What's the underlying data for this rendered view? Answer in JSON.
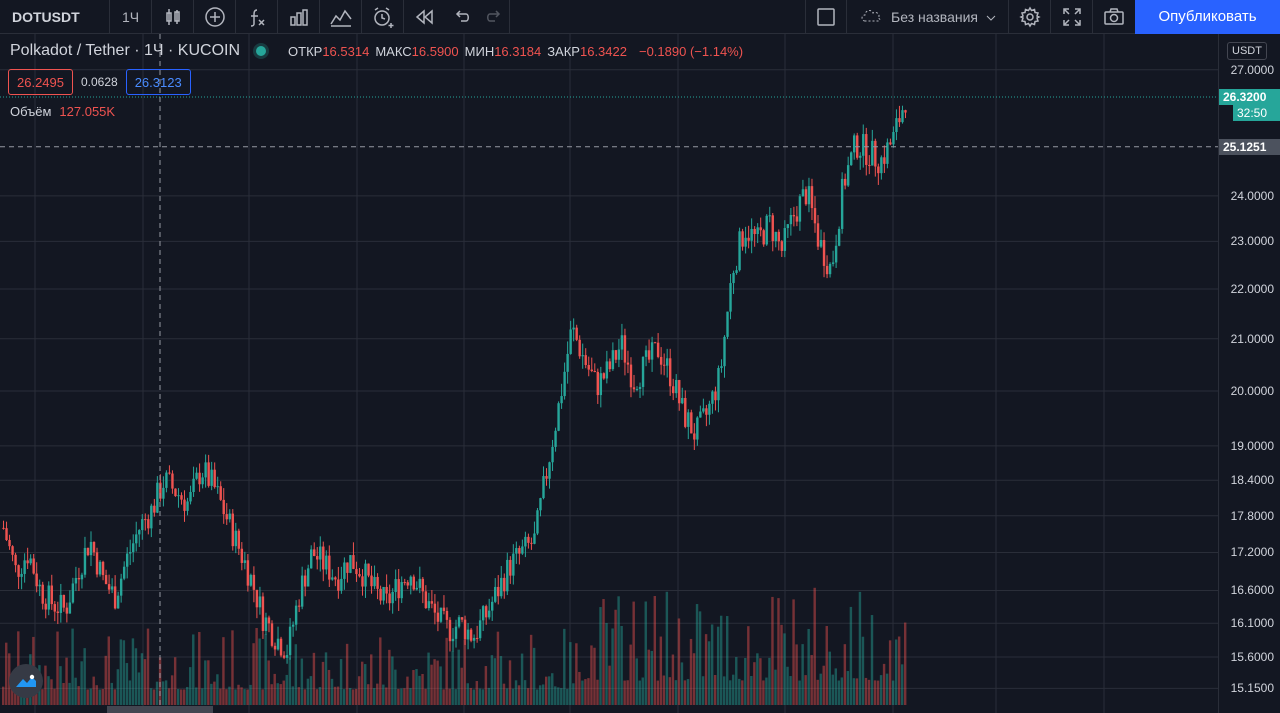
{
  "toolbar": {
    "symbol": "DOTUSDT",
    "interval": "1Ч",
    "icons": [
      "candles-icon",
      "add-indicator-icon",
      "fx-icon",
      "bar-compare-icon",
      "templates-icon",
      "alert-icon",
      "replay-icon",
      "undo-icon",
      "redo-icon",
      "fullscreen-square-icon",
      "cloud-icon",
      "chevron-down-icon",
      "settings-icon",
      "expand-icon",
      "camera-icon"
    ],
    "layout_name": "Без названия",
    "publish_label": "Опубликовать"
  },
  "legend": {
    "title": "Polkadot / Tether · 1Ч · KUCOIN",
    "open_label": "ОТКР",
    "open": "16.5314",
    "high_label": "МАКС",
    "high": "16.5900",
    "low_label": "МИН",
    "low": "16.3184",
    "close_label": "ЗАКР",
    "close": "16.3422",
    "change": "−0.1890 (−1.14%)",
    "sell_price": "26.2495",
    "spread": "0.0628",
    "buy_price": "26.3123",
    "volume_label": "Объём",
    "volume": "127.055K"
  },
  "price_axis": {
    "currency": "USDT",
    "ticks": [
      "27.0000",
      "24.0000",
      "23.0000",
      "22.0000",
      "21.0000",
      "20.0000",
      "19.0000",
      "18.4000",
      "17.8000",
      "17.2000",
      "16.6000",
      "16.1000",
      "15.6000",
      "15.1500"
    ],
    "last_price": "26.3200",
    "countdown": "32:50",
    "crosshair_price": "25.1251"
  },
  "colors": {
    "background": "#131722",
    "up": "#26a69a",
    "down": "#ef5350",
    "accent": "#2962ff",
    "grid": "#2a2e39"
  },
  "chart_data": {
    "type": "candlestick",
    "scale": "log",
    "series_name": "DOTUSDT",
    "ylim": [
      15.0,
      27.4
    ],
    "close_path": [
      17.6,
      16.9,
      17.2,
      16.6,
      16.4,
      16.3,
      16.9,
      17.4,
      16.8,
      16.5,
      17.1,
      17.6,
      17.9,
      18.4,
      18.2,
      18.0,
      18.6,
      18.3,
      17.8,
      17.3,
      16.8,
      16.2,
      15.9,
      15.7,
      16.6,
      17.2,
      17.0,
      16.8,
      17.1,
      16.9,
      16.6,
      16.4,
      16.7,
      16.9,
      16.5,
      16.2,
      16.0,
      16.1,
      15.9,
      16.2,
      16.6,
      17.0,
      17.2,
      17.4,
      18.6,
      19.8,
      21.2,
      20.6,
      20.1,
      20.4,
      20.9,
      20.2,
      20.5,
      20.8,
      20.3,
      19.6,
      19.2,
      19.6,
      20.3,
      22.4,
      23.3,
      23.0,
      23.4,
      22.8,
      23.6,
      24.1,
      23.0,
      22.4,
      24.3,
      25.2,
      25.0,
      24.8,
      25.3,
      26.3
    ],
    "volume_label": "Объём"
  }
}
